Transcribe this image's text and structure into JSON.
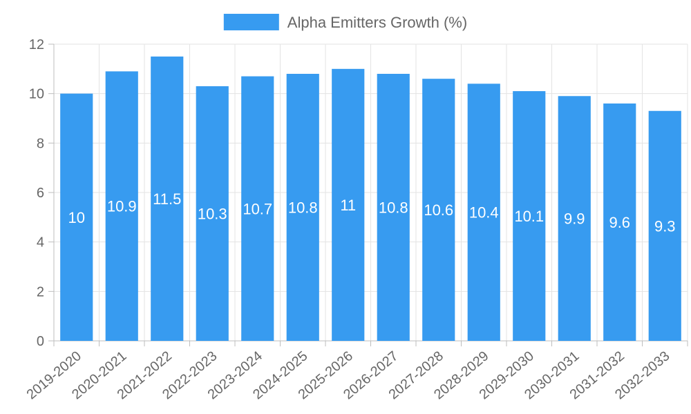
{
  "chart_data": {
    "type": "bar",
    "title": "",
    "xlabel": "",
    "ylabel": "",
    "categories": [
      "2019-2020",
      "2020-2021",
      "2021-2022",
      "2022-2023",
      "2023-2024",
      "2024-2025",
      "2025-2026",
      "2026-2027",
      "2027-2028",
      "2028-2029",
      "2029-2030",
      "2030-2031",
      "2031-2032",
      "2032-2033"
    ],
    "series": [
      {
        "name": "Alpha Emitters Growth (%)",
        "values": [
          10,
          10.9,
          11.5,
          10.3,
          10.7,
          10.8,
          11,
          10.8,
          10.6,
          10.4,
          10.1,
          9.9,
          9.6,
          9.3
        ],
        "color": "#379bf0"
      }
    ],
    "ylim": [
      0,
      12
    ],
    "yticks": [
      0,
      2,
      4,
      6,
      8,
      10,
      12
    ],
    "grid": true,
    "legend_position": "top-center",
    "data_labels": true
  }
}
